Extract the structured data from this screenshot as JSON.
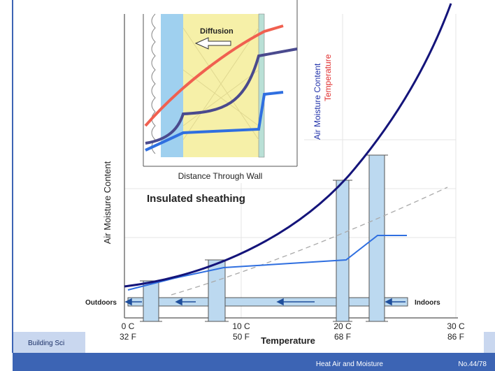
{
  "inset": {
    "label_diffusion": "Diffusion",
    "axis_x": "Distance Through Wall",
    "axis_y_moisture": "Air Moisture Content",
    "axis_y_temperature": "Temperature"
  },
  "caption": "Insulated sheathing",
  "chart": {
    "axis_y": "Air Moisture Content",
    "axis_x": "Temperature",
    "outdoors": "Outdoors",
    "indoors": "Indoors",
    "ticks": [
      {
        "c": "0 C",
        "f": "32 F"
      },
      {
        "c": "10 C",
        "f": "50 F"
      },
      {
        "c": "20 C",
        "f": "68 F"
      },
      {
        "c": "30 C",
        "f": "86 F"
      }
    ]
  },
  "footer": {
    "left": "Building Sci",
    "title": "Heat Air and Moisture",
    "page": "No.44/78"
  }
}
